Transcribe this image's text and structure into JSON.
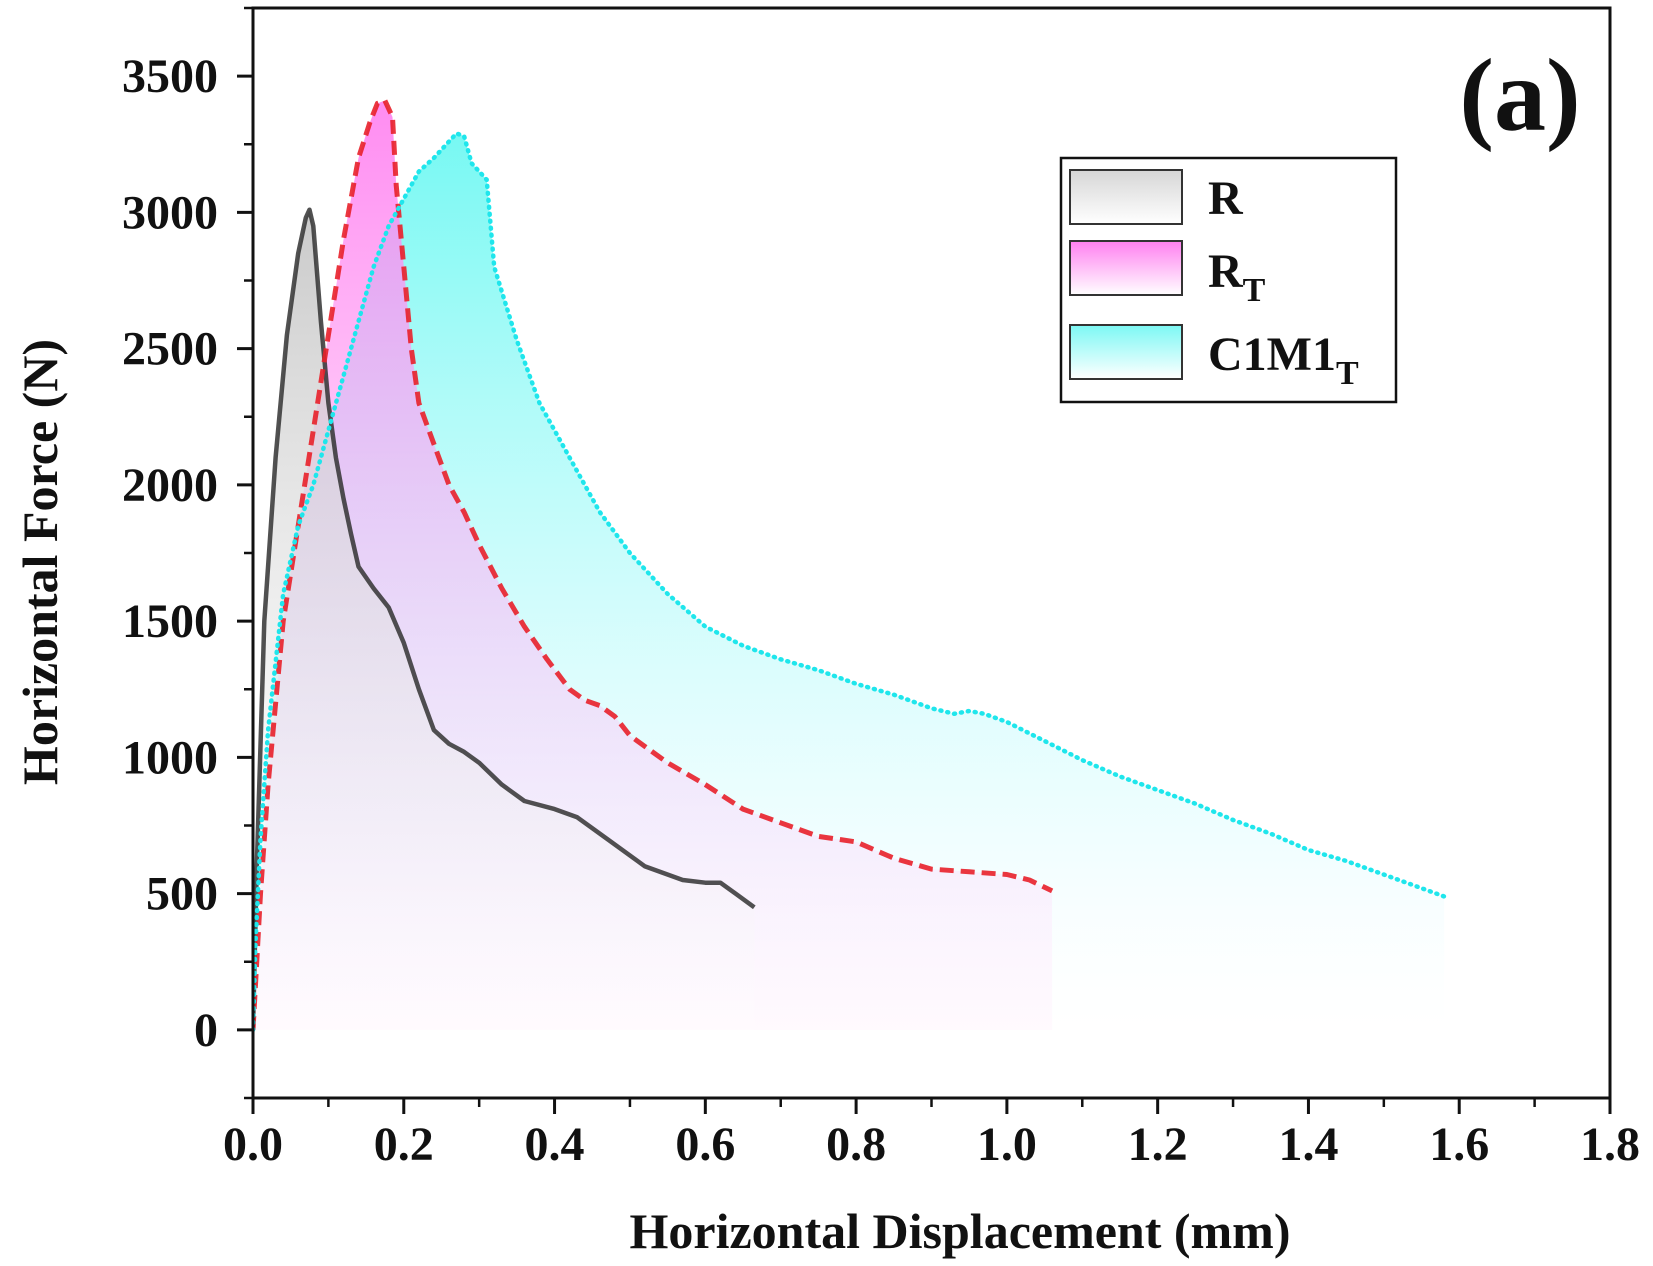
{
  "chart_data": {
    "type": "area",
    "panel_label": "(a)",
    "xlabel": "Horizontal Displacement (mm)",
    "ylabel": "Horizontal Force (N)",
    "xlim": [
      0,
      1.8
    ],
    "ylim": [
      -250,
      3750
    ],
    "x_ticks": [
      "0.0",
      "0.2",
      "0.4",
      "0.6",
      "0.8",
      "1.0",
      "1.2",
      "1.4",
      "1.6",
      "1.8"
    ],
    "y_ticks": [
      "0",
      "500",
      "1000",
      "1500",
      "2000",
      "2500",
      "3000",
      "3500"
    ],
    "grid": false,
    "legend_position": "top-right",
    "series": [
      {
        "name": "R",
        "subscript": "",
        "line_style": "solid",
        "color": "#333333",
        "fill_color": "#d0d0d0",
        "x": [
          0,
          0.005,
          0.015,
          0.03,
          0.045,
          0.06,
          0.07,
          0.075,
          0.08,
          0.09,
          0.1,
          0.11,
          0.12,
          0.13,
          0.14,
          0.16,
          0.18,
          0.2,
          0.22,
          0.24,
          0.26,
          0.28,
          0.3,
          0.33,
          0.36,
          0.4,
          0.43,
          0.47,
          0.52,
          0.57,
          0.6,
          0.62,
          0.64,
          0.665
        ],
        "y": [
          0,
          600,
          1500,
          2100,
          2550,
          2850,
          2980,
          3010,
          2950,
          2600,
          2300,
          2100,
          1950,
          1820,
          1700,
          1620,
          1550,
          1420,
          1250,
          1100,
          1050,
          1020,
          980,
          900,
          840,
          810,
          780,
          700,
          600,
          550,
          540,
          540,
          500,
          450
        ]
      },
      {
        "name": "R",
        "subscript": "T",
        "line_style": "dashed",
        "color": "#e8202a",
        "fill_color": "#ff8cf0",
        "x": [
          0,
          0.01,
          0.02,
          0.04,
          0.06,
          0.08,
          0.1,
          0.12,
          0.14,
          0.155,
          0.165,
          0.175,
          0.185,
          0.19,
          0.2,
          0.21,
          0.22,
          0.24,
          0.26,
          0.28,
          0.3,
          0.33,
          0.36,
          0.39,
          0.42,
          0.44,
          0.46,
          0.48,
          0.5,
          0.55,
          0.6,
          0.65,
          0.7,
          0.75,
          0.8,
          0.85,
          0.9,
          0.95,
          1.0,
          1.03,
          1.06
        ],
        "y": [
          0,
          500,
          900,
          1500,
          1850,
          2200,
          2550,
          2900,
          3200,
          3330,
          3400,
          3410,
          3350,
          3100,
          2800,
          2500,
          2300,
          2150,
          2000,
          1900,
          1780,
          1620,
          1480,
          1360,
          1250,
          1210,
          1190,
          1150,
          1080,
          980,
          900,
          810,
          760,
          710,
          690,
          630,
          590,
          580,
          570,
          550,
          510
        ]
      },
      {
        "name": "C1M1",
        "subscript": "T",
        "line_style": "dotted",
        "color": "#1fe6ec",
        "fill_color": "#7ffaf5",
        "x": [
          0,
          0.003,
          0.01,
          0.02,
          0.04,
          0.06,
          0.08,
          0.1,
          0.12,
          0.14,
          0.16,
          0.18,
          0.2,
          0.22,
          0.24,
          0.26,
          0.27,
          0.28,
          0.29,
          0.3,
          0.31,
          0.32,
          0.35,
          0.38,
          0.42,
          0.46,
          0.5,
          0.55,
          0.6,
          0.65,
          0.7,
          0.75,
          0.8,
          0.85,
          0.9,
          0.93,
          0.95,
          0.97,
          1.0,
          1.05,
          1.1,
          1.15,
          1.2,
          1.25,
          1.3,
          1.35,
          1.4,
          1.45,
          1.5,
          1.55,
          1.58
        ],
        "y": [
          0,
          300,
          700,
          1100,
          1600,
          1850,
          2000,
          2200,
          2400,
          2600,
          2800,
          2950,
          3050,
          3150,
          3200,
          3260,
          3290,
          3280,
          3180,
          3150,
          3120,
          2800,
          2530,
          2300,
          2100,
          1900,
          1750,
          1600,
          1480,
          1410,
          1360,
          1320,
          1270,
          1230,
          1180,
          1160,
          1170,
          1160,
          1130,
          1060,
          990,
          930,
          880,
          830,
          770,
          720,
          660,
          620,
          570,
          520,
          490
        ]
      }
    ]
  }
}
